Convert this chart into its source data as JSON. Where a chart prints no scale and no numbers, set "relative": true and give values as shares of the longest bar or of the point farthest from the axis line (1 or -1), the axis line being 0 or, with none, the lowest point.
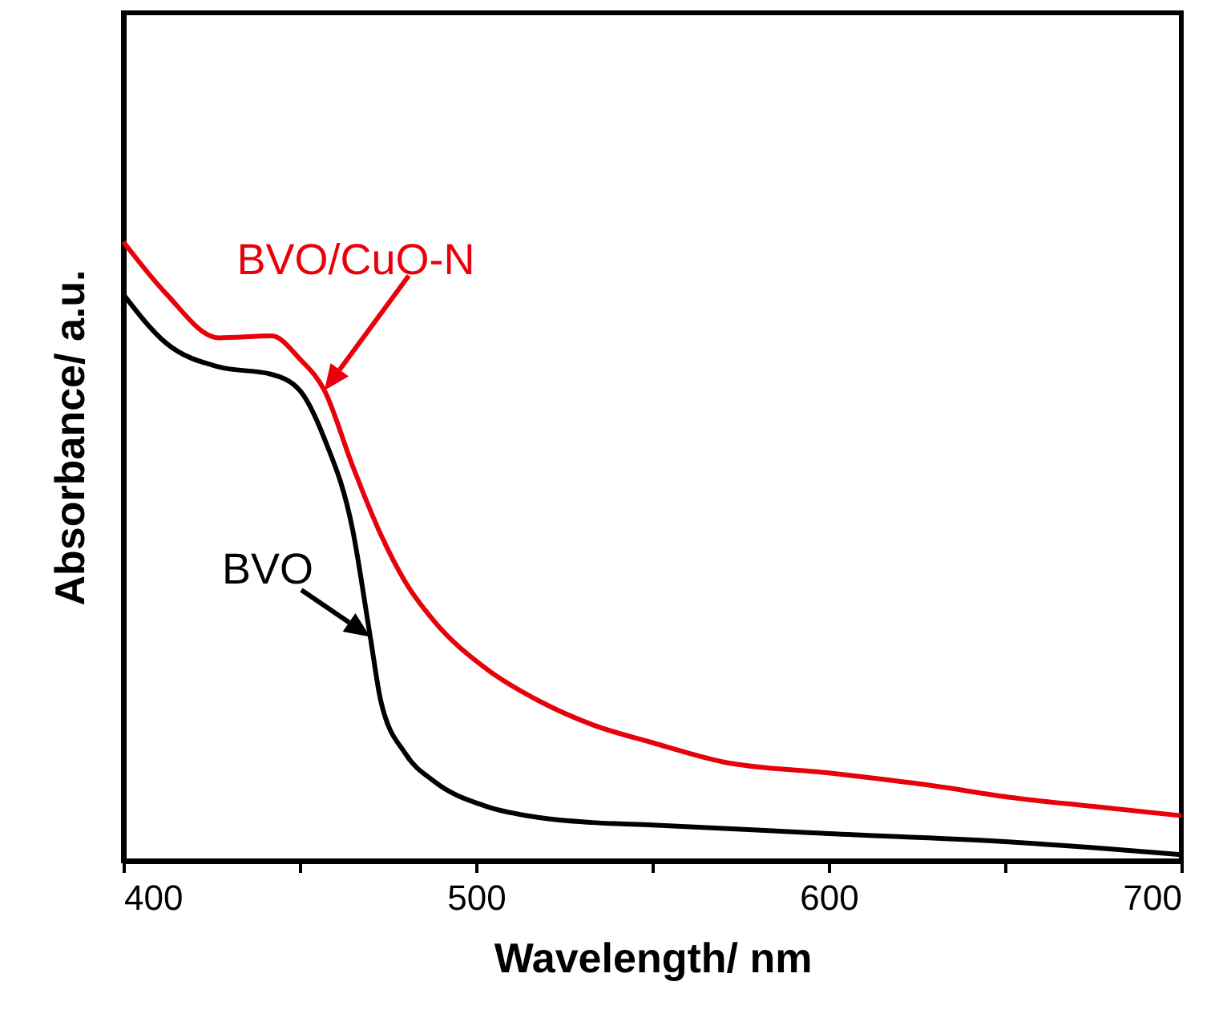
{
  "chart_data": {
    "type": "line",
    "relative": true,
    "xlabel": "Wavelength/ nm",
    "ylabel": "Absorbance/ a.u.",
    "xlim": [
      400,
      700
    ],
    "xticks": [
      400,
      {
        "value": 450,
        "label": null
      },
      500,
      {
        "value": 550,
        "label": null
      },
      600,
      {
        "value": 650,
        "label": null
      },
      700
    ],
    "grid": false,
    "marker": "none",
    "line_style": "solid",
    "series": [
      {
        "name": "BVO/CuO-N",
        "color": "#e8000b",
        "x": [
          400,
          412,
          427,
          442,
          450,
          457,
          465,
          473,
          480,
          488,
          503,
          518,
          533,
          550,
          570,
          600,
          630,
          651,
          675,
          700
        ],
        "values": [
          1.0,
          0.917,
          0.845,
          0.848,
          0.811,
          0.76,
          0.638,
          0.527,
          0.45,
          0.388,
          0.31,
          0.258,
          0.22,
          0.191,
          0.16,
          0.142,
          0.121,
          0.103,
          0.088,
          0.073
        ]
      },
      {
        "name": "BVO",
        "color": "#000000",
        "x": [
          400,
          412,
          427,
          442,
          450,
          457,
          465,
          470,
          473,
          480,
          488,
          503,
          518,
          533,
          550,
          600,
          650,
          700
        ],
        "values": [
          0.915,
          0.837,
          0.798,
          0.786,
          0.76,
          0.682,
          0.535,
          0.362,
          0.258,
          0.173,
          0.129,
          0.088,
          0.07,
          0.062,
          0.058,
          0.044,
          0.031,
          0.01
        ]
      }
    ]
  }
}
